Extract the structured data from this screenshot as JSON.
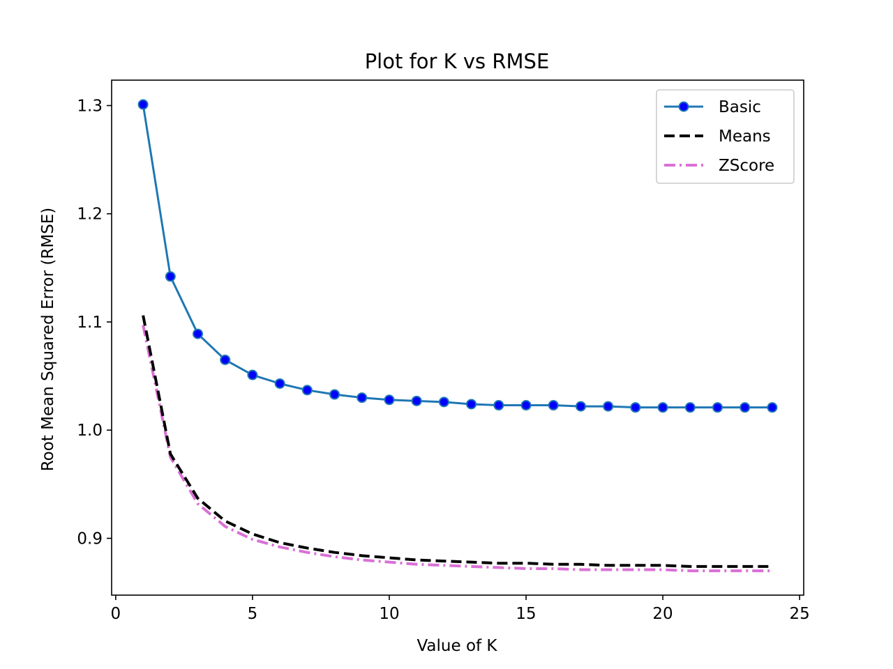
{
  "chart_data": {
    "type": "line",
    "title": "Plot for K vs RMSE",
    "xlabel": "Value of K",
    "ylabel": "Root Mean Squared Error (RMSE)",
    "xlim": [
      -0.15,
      25.15
    ],
    "ylim": [
      0.8475,
      1.3235
    ],
    "xticks": [
      0,
      5,
      10,
      15,
      20,
      25
    ],
    "yticks": [
      0.9,
      1.0,
      1.1,
      1.2,
      1.3
    ],
    "ytick_labels": [
      "0.9",
      "1.0",
      "1.1",
      "1.2",
      "1.3"
    ],
    "grid": false,
    "legend_position": "top-right",
    "x": [
      1,
      2,
      3,
      4,
      5,
      6,
      7,
      8,
      9,
      10,
      11,
      12,
      13,
      14,
      15,
      16,
      17,
      18,
      19,
      20,
      21,
      22,
      23,
      24
    ],
    "series": [
      {
        "name": "Basic",
        "style": "solid-marker",
        "color": "#1f77b4",
        "marker_color": "#0000ff",
        "values": [
          1.301,
          1.142,
          1.089,
          1.065,
          1.051,
          1.043,
          1.037,
          1.033,
          1.03,
          1.028,
          1.027,
          1.026,
          1.024,
          1.023,
          1.023,
          1.023,
          1.022,
          1.022,
          1.021,
          1.021,
          1.021,
          1.021,
          1.021,
          1.021
        ]
      },
      {
        "name": "Means",
        "style": "dashed",
        "color": "#000000",
        "values": [
          1.106,
          0.978,
          0.937,
          0.916,
          0.904,
          0.896,
          0.891,
          0.887,
          0.884,
          0.882,
          0.88,
          0.879,
          0.878,
          0.877,
          0.877,
          0.876,
          0.876,
          0.875,
          0.875,
          0.875,
          0.874,
          0.874,
          0.874,
          0.874
        ]
      },
      {
        "name": "ZScore",
        "style": "dashdot",
        "color": "#da70d6",
        "values": [
          1.097,
          0.975,
          0.932,
          0.911,
          0.899,
          0.892,
          0.887,
          0.883,
          0.88,
          0.878,
          0.876,
          0.875,
          0.874,
          0.873,
          0.872,
          0.872,
          0.871,
          0.871,
          0.871,
          0.871,
          0.87,
          0.87,
          0.87,
          0.87
        ]
      }
    ]
  }
}
